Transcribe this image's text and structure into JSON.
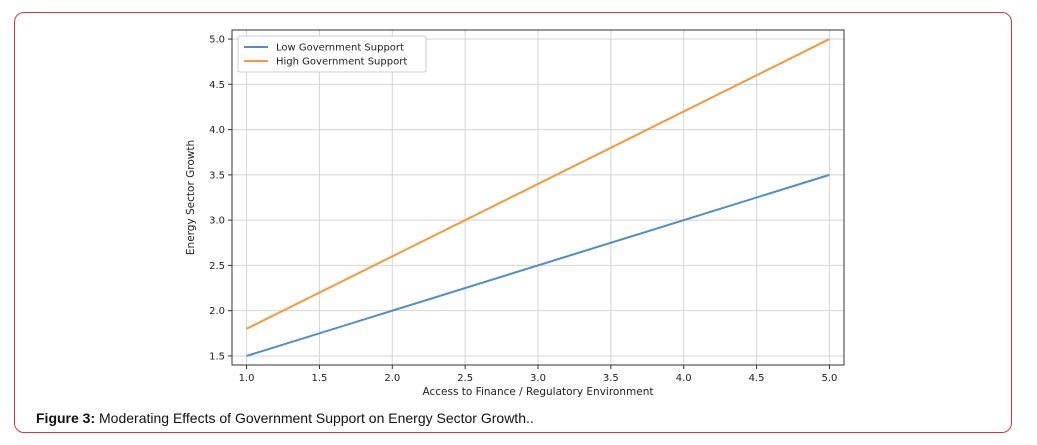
{
  "caption": {
    "label": "Figure 3:",
    "text": "Moderating Effects of Government Support on Energy Sector Growth.."
  },
  "chart_data": {
    "type": "line",
    "title": "",
    "xlabel": "Access to Finance / Regulatory Environment",
    "ylabel": "Energy Sector Growth",
    "xlim": [
      0.9,
      5.1
    ],
    "ylim": [
      1.4,
      5.1
    ],
    "xticks": [
      "1.0",
      "1.5",
      "2.0",
      "2.5",
      "3.0",
      "3.5",
      "4.0",
      "4.5",
      "5.0"
    ],
    "yticks": [
      "1.5",
      "2.0",
      "2.5",
      "3.0",
      "3.5",
      "4.0",
      "4.5",
      "5.0"
    ],
    "grid": true,
    "legend_position": "top-left",
    "x": [
      1.0,
      5.0
    ],
    "series": [
      {
        "name": "Low Government Support",
        "values": [
          1.5,
          3.5
        ],
        "color": "#4e8fc7"
      },
      {
        "name": "High Government Support",
        "values": [
          1.8,
          5.0
        ],
        "color": "#f5993b"
      }
    ]
  }
}
